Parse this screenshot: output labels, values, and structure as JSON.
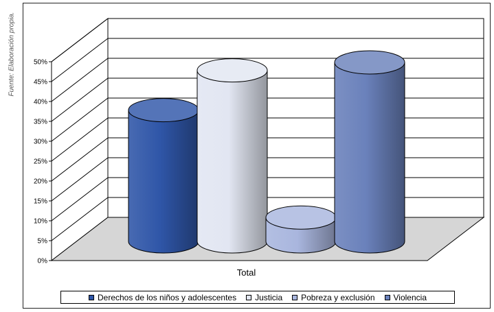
{
  "source_note": "Fuente: Elaboración propia.",
  "chart_data": {
    "type": "bar",
    "style": "3d-cylinder",
    "categories": [
      "Total"
    ],
    "xlabel": "Total",
    "ylim": [
      0,
      50
    ],
    "y_tick_labels": [
      "0%",
      "5%",
      "10%",
      "15%",
      "20%",
      "25%",
      "30%",
      "35%",
      "40%",
      "45%",
      "50%"
    ],
    "grid": true,
    "legend_position": "bottom",
    "series": [
      {
        "name": "Derechos de los niños y adolescentes",
        "values": [
          33
        ],
        "color": "#2f56a8"
      },
      {
        "name": "Justicia",
        "values": [
          43
        ],
        "color": "#e2e6f2"
      },
      {
        "name": "Pobreza y exclusión",
        "values": [
          6
        ],
        "color": "#a9b6de"
      },
      {
        "name": "Violencia",
        "values": [
          45
        ],
        "color": "#6a81bb"
      }
    ]
  }
}
